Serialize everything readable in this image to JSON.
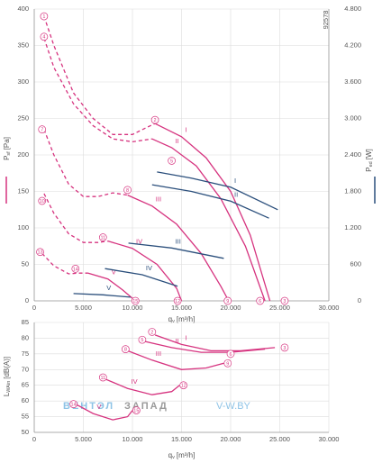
{
  "chart_data": [
    {
      "type": "line",
      "note": "92578",
      "x_label": {
        "main": "q",
        "sub": "v",
        "unit": "[m³/h]"
      },
      "y_label": {
        "main": "P",
        "sub": "sf",
        "unit": "[Pa]"
      },
      "y2_label": {
        "main": "P",
        "sub": "ed",
        "unit": "[W]"
      },
      "xlim": [
        0,
        30000
      ],
      "xticks": [
        0,
        {
          "value": 5000,
          "label": "5.000"
        },
        {
          "value": 10000,
          "label": "10.000"
        },
        {
          "value": 15000,
          "label": "15.000"
        },
        {
          "value": 20000,
          "label": "20.000"
        },
        {
          "value": 25000,
          "label": "25.000"
        },
        {
          "value": 30000,
          "label": "30.000"
        }
      ],
      "ylim": [
        0,
        400
      ],
      "yticks": [
        0,
        50,
        100,
        150,
        200,
        250,
        300,
        350,
        400
      ],
      "y2lim": [
        0,
        4800
      ],
      "y2ticks": [
        0,
        600,
        {
          "value": 1200,
          "label": "1.200"
        },
        {
          "value": 1800,
          "label": "1.800"
        },
        {
          "value": 2400,
          "label": "2.400"
        },
        {
          "value": 3000,
          "label": "3.000"
        },
        {
          "value": 3600,
          "label": "3.600"
        },
        {
          "value": 4200,
          "label": "4.200"
        },
        {
          "value": 4800,
          "label": "4.800"
        }
      ],
      "grid": true,
      "series": [
        {
          "name": "I",
          "color": "#d6337f",
          "x_dashed": [
            1000,
            2000,
            4000,
            6000,
            8000,
            10000,
            11500,
            12300
          ],
          "values_dashed": [
            390,
            350,
            285,
            250,
            228,
            228,
            238,
            243
          ],
          "x": [
            12300,
            15000,
            17500,
            20000,
            22000,
            24000
          ],
          "values": [
            243,
            225,
            196,
            150,
            90,
            0
          ]
        },
        {
          "name": "II",
          "color": "#d6337f",
          "x_dashed": [
            1000,
            2000,
            4000,
            6000,
            8000,
            10000,
            12000
          ],
          "values_dashed": [
            360,
            320,
            270,
            240,
            222,
            218,
            222
          ],
          "x": [
            12000,
            14000,
            16500,
            19000,
            21500,
            23500
          ],
          "values": [
            222,
            210,
            185,
            140,
            75,
            0
          ]
        },
        {
          "name": "III",
          "color": "#d6337f",
          "x_dashed": [
            1000,
            2000,
            3500,
            5000,
            6500,
            8000,
            9500
          ],
          "values_dashed": [
            235,
            200,
            160,
            143,
            143,
            148,
            145
          ],
          "x": [
            9500,
            12000,
            14500,
            17000,
            19000,
            19800
          ],
          "values": [
            145,
            130,
            105,
            65,
            20,
            0
          ]
        },
        {
          "name": "IV",
          "color": "#d6337f",
          "x_dashed": [
            1000,
            2000,
            3500,
            5000,
            6500,
            7500
          ],
          "values_dashed": [
            147,
            120,
            92,
            80,
            80,
            82
          ],
          "x": [
            7500,
            10000,
            12500,
            14500,
            15000
          ],
          "values": [
            82,
            72,
            50,
            17,
            0
          ]
        },
        {
          "name": "V",
          "color": "#d6337f",
          "x_dashed": [
            800,
            2000,
            3500,
            4500,
            5500
          ],
          "values_dashed": [
            65,
            48,
            37,
            38,
            38
          ],
          "x": [
            5500,
            7500,
            9000,
            10300
          ],
          "values": [
            38,
            30,
            15,
            0
          ]
        },
        {
          "name": "I",
          "color": "#2b4f7c",
          "axis": "y2",
          "x": [
            12500,
            16000,
            20000,
            24800
          ],
          "values": [
            2120,
            2020,
            1870,
            1500
          ]
        },
        {
          "name": "II",
          "color": "#2b4f7c",
          "axis": "y2",
          "x": [
            12000,
            16000,
            20000,
            23900
          ],
          "values": [
            1910,
            1800,
            1640,
            1360
          ]
        },
        {
          "name": "III",
          "color": "#2b4f7c",
          "axis": "y2",
          "x": [
            9600,
            14000,
            19300
          ],
          "values": [
            950,
            870,
            700
          ]
        },
        {
          "name": "IV",
          "color": "#2b4f7c",
          "axis": "y2",
          "x": [
            7200,
            11000,
            14600
          ],
          "values": [
            530,
            430,
            240
          ]
        },
        {
          "name": "V",
          "color": "#2b4f7c",
          "axis": "y2",
          "x": [
            4000,
            7000,
            9800
          ],
          "values": [
            120,
            100,
            60
          ]
        }
      ],
      "markers": [
        {
          "label": "1",
          "x": 1000,
          "y": 390
        },
        {
          "label": "2",
          "x": 12300,
          "y": 248
        },
        {
          "label": "3",
          "x": 25500,
          "y": 0
        },
        {
          "label": "4",
          "x": 1000,
          "y": 362
        },
        {
          "label": "5",
          "x": 14000,
          "y": 192
        },
        {
          "label": "6",
          "x": 23000,
          "y": 0
        },
        {
          "label": "7",
          "x": 800,
          "y": 235
        },
        {
          "label": "8",
          "x": 9500,
          "y": 152
        },
        {
          "label": "9",
          "x": 19700,
          "y": 0
        },
        {
          "label": "10",
          "x": 800,
          "y": 137
        },
        {
          "label": "11",
          "x": 7000,
          "y": 87
        },
        {
          "label": "12",
          "x": 14600,
          "y": 0
        },
        {
          "label": "13",
          "x": 600,
          "y": 67
        },
        {
          "label": "14",
          "x": 4200,
          "y": 44
        },
        {
          "label": "15",
          "x": 10300,
          "y": 0
        }
      ]
    },
    {
      "type": "line",
      "x_label": {
        "main": "q",
        "sub": "v",
        "unit": "[m³/h]"
      },
      "y_label": {
        "main": "L",
        "sub": "WAin",
        "unit": "[dB(A)]"
      },
      "xlim": [
        0,
        30000
      ],
      "xticks": [
        0,
        {
          "value": 5000,
          "label": "5.000"
        },
        {
          "value": 10000,
          "label": "10.000"
        },
        {
          "value": 15000,
          "label": "15.000"
        },
        {
          "value": 20000,
          "label": "20.000"
        },
        {
          "value": 25000,
          "label": "25.000"
        },
        {
          "value": 30000,
          "label": "30.000"
        }
      ],
      "ylim": [
        50,
        85
      ],
      "yticks": [
        50,
        55,
        60,
        65,
        70,
        75,
        80,
        85
      ],
      "grid": true,
      "watermark": [
        "ВЕНТЭЛ",
        "ЗАПАД",
        "V-W.BY"
      ],
      "series": [
        {
          "name": "I",
          "color": "#d6337f",
          "x": [
            12300,
            15000,
            18000,
            21000,
            24500
          ],
          "values": [
            81,
            78,
            76,
            76,
            77
          ]
        },
        {
          "name": "II",
          "color": "#d6337f",
          "x": [
            11200,
            14000,
            17000,
            20000,
            23500
          ],
          "values": [
            79,
            77,
            75.5,
            75.5,
            76.5
          ]
        },
        {
          "name": "III",
          "color": "#d6337f",
          "x": [
            9500,
            12000,
            15000,
            17500,
            19300
          ],
          "values": [
            76,
            73,
            70,
            70.5,
            72
          ]
        },
        {
          "name": "IV",
          "color": "#d6337f",
          "x": [
            7200,
            9500,
            12000,
            14000,
            14800
          ],
          "values": [
            67,
            64,
            62,
            63,
            65
          ]
        },
        {
          "name": "V",
          "color": "#d6337f",
          "x": [
            4200,
            6000,
            8000,
            9500,
            10000
          ],
          "values": [
            59,
            56,
            54,
            55,
            57
          ]
        }
      ],
      "markers": [
        {
          "label": "2",
          "x": 12000,
          "y": 82
        },
        {
          "label": "3",
          "x": 25500,
          "y": 77
        },
        {
          "label": "5",
          "x": 11000,
          "y": 79.5
        },
        {
          "label": "6",
          "x": 20000,
          "y": 75
        },
        {
          "label": "8",
          "x": 9300,
          "y": 76.5
        },
        {
          "label": "9",
          "x": 19700,
          "y": 72
        },
        {
          "label": "11",
          "x": 7000,
          "y": 67.5
        },
        {
          "label": "12",
          "x": 15200,
          "y": 65
        },
        {
          "label": "14",
          "x": 4000,
          "y": 59
        },
        {
          "label": "15",
          "x": 10400,
          "y": 57
        }
      ]
    }
  ]
}
